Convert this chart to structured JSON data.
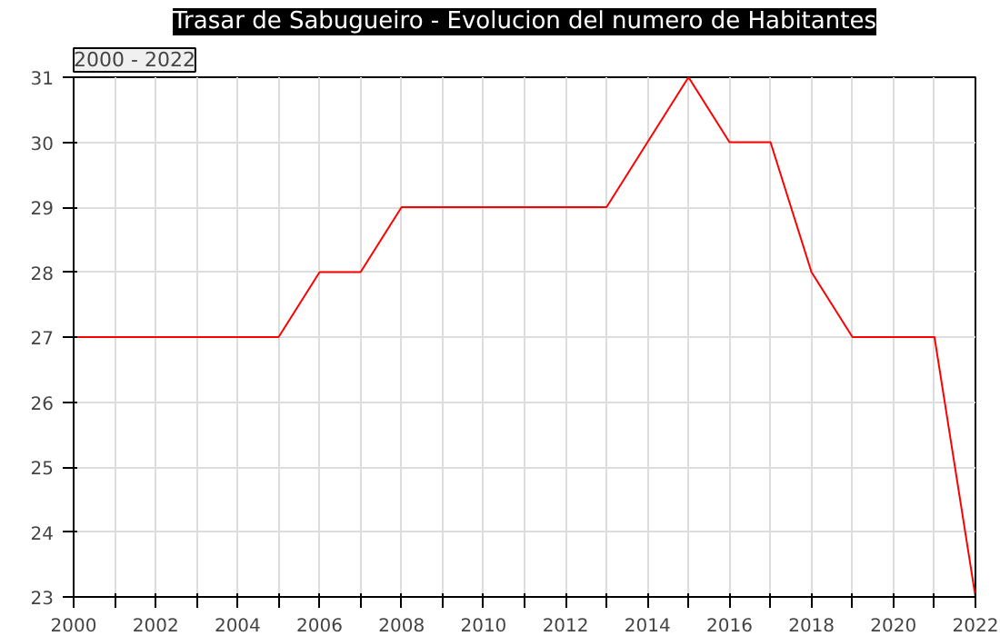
{
  "chart_data": {
    "type": "line",
    "title": "Trasar de Sabugueiro - Evolucion del numero de Habitantes",
    "annotations": [
      "2000 - 2022"
    ],
    "x": [
      2000,
      2001,
      2002,
      2003,
      2004,
      2005,
      2006,
      2007,
      2008,
      2009,
      2010,
      2011,
      2012,
      2013,
      2014,
      2015,
      2016,
      2017,
      2018,
      2019,
      2020,
      2021,
      2022
    ],
    "series": [
      {
        "color": "#ff0000",
        "values": [
          27,
          27,
          27,
          27,
          27,
          27,
          28,
          28,
          29,
          29,
          29,
          29,
          29,
          29,
          30,
          31,
          30,
          30,
          28,
          27,
          27,
          27,
          23
        ]
      }
    ],
    "xlim": [
      2000,
      2022
    ],
    "xticks": [
      2000,
      {
        "value": 2001,
        "label": null
      },
      2002,
      {
        "value": 2003,
        "label": null
      },
      2004,
      {
        "value": 2005,
        "label": null
      },
      2006,
      {
        "value": 2007,
        "label": null
      },
      2008,
      {
        "value": 2009,
        "label": null
      },
      2010,
      {
        "value": 2011,
        "label": null
      },
      2012,
      {
        "value": 2013,
        "label": null
      },
      2014,
      {
        "value": 2015,
        "label": null
      },
      2016,
      {
        "value": 2017,
        "label": null
      },
      2018,
      {
        "value": 2019,
        "label": null
      },
      2020,
      {
        "value": 2021,
        "label": null
      },
      2022
    ],
    "ylim": [
      23,
      31
    ],
    "yticks": [
      23,
      24,
      25,
      26,
      27,
      28,
      29,
      30,
      31
    ],
    "grid": true,
    "marker": "none",
    "line_style": "solid"
  }
}
